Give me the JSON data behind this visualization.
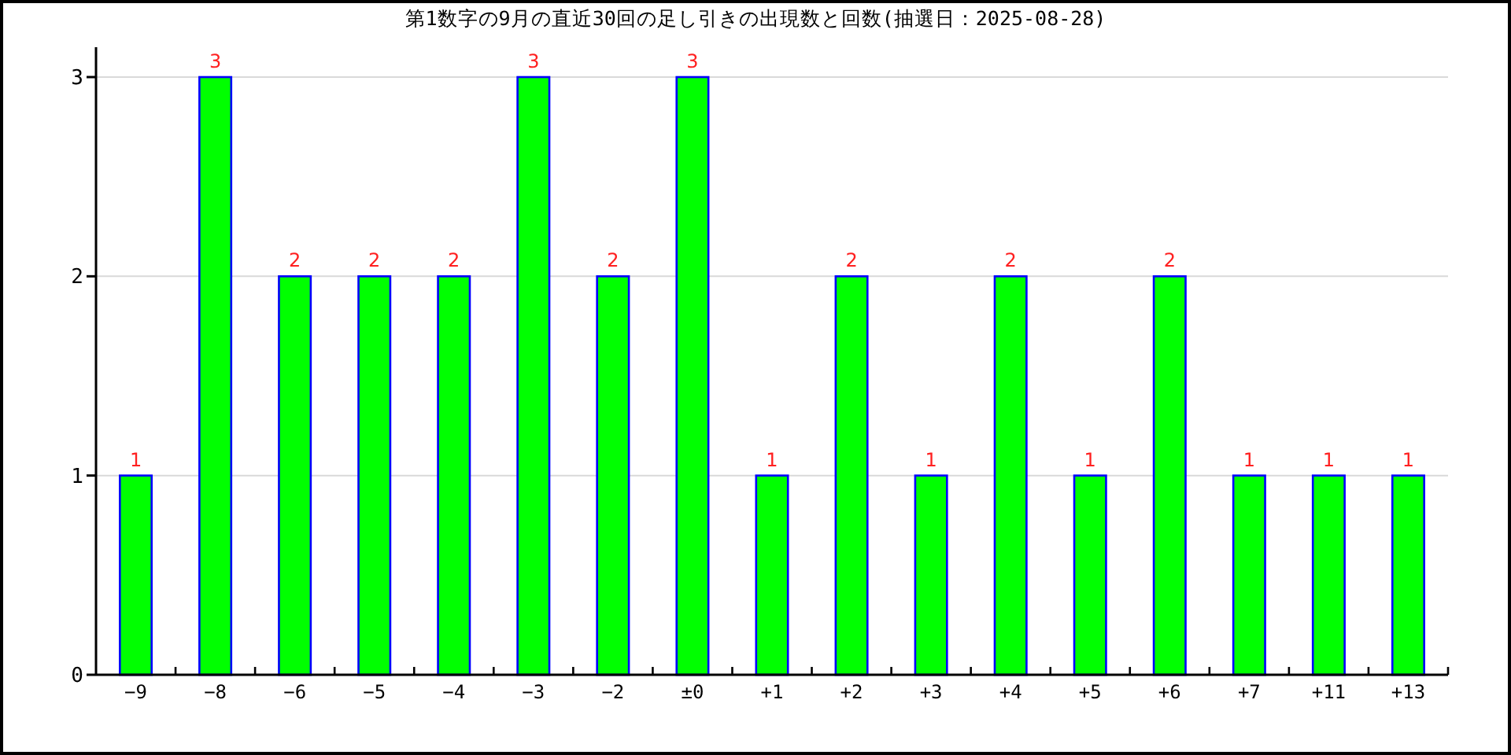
{
  "chart_data": {
    "type": "bar",
    "title": "第1数字の9月の直近30回の足し引きの出現数と回数(抽選日：2025-08-28)",
    "categories": [
      "−9",
      "−8",
      "−6",
      "−5",
      "−4",
      "−3",
      "−2",
      "±0",
      "+1",
      "+2",
      "+3",
      "+4",
      "+5",
      "+6",
      "+7",
      "+11",
      "+13"
    ],
    "values": [
      1,
      3,
      2,
      2,
      2,
      3,
      2,
      3,
      1,
      2,
      1,
      2,
      1,
      2,
      1,
      1,
      1
    ],
    "color": "#00ff00",
    "ylim": [
      0,
      3.15
    ],
    "yticks": [
      0,
      1,
      2,
      3
    ],
    "grid": "y",
    "data_labels": true
  }
}
